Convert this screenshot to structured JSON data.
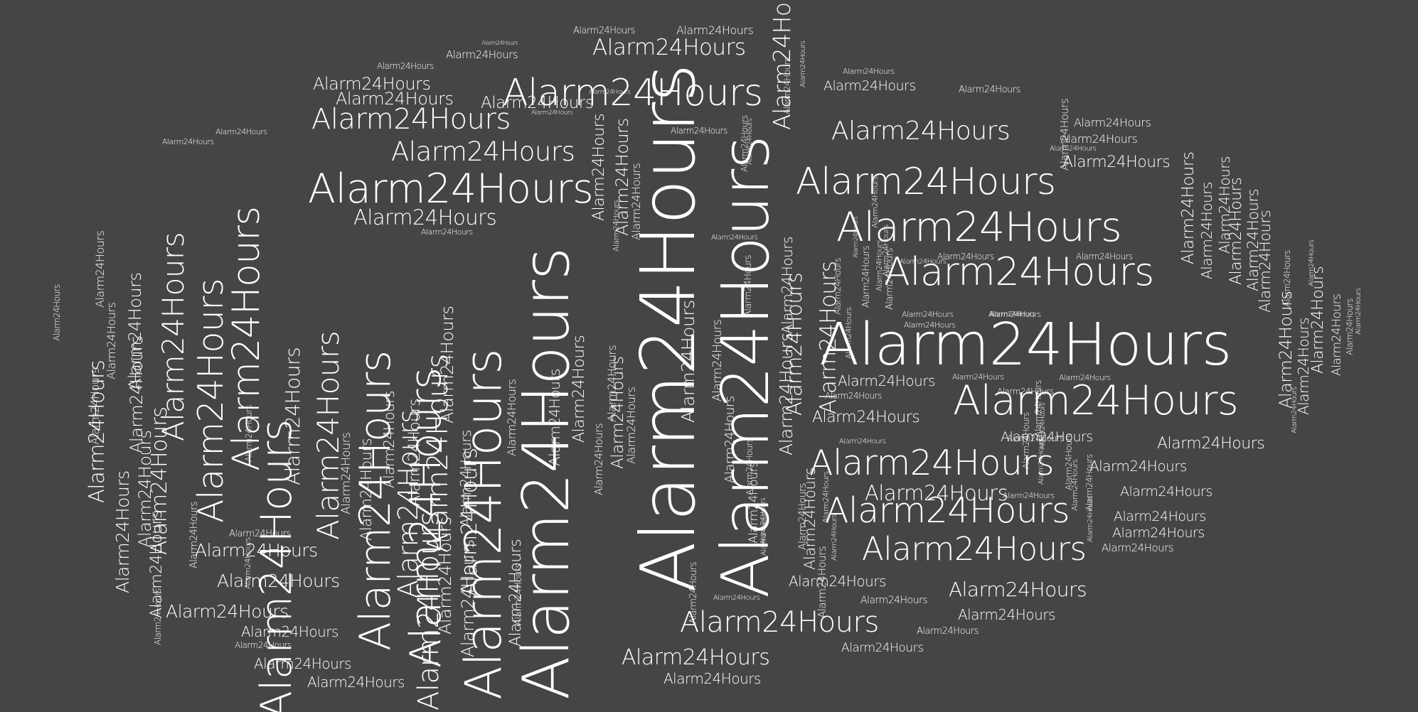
{
  "word_cloud": {
    "word": "Alarm24Hours",
    "text_color": "#ffffff",
    "background_color": "#454545"
  }
}
